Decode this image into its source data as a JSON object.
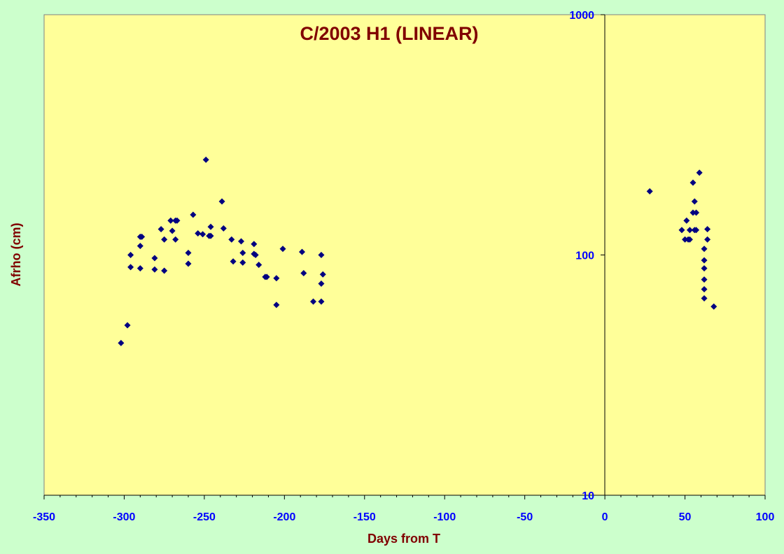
{
  "chart_data": {
    "type": "scatter",
    "title": "C/2003 H1 (LINEAR)",
    "xlabel": "Days from T",
    "ylabel": "Afrho (cm)",
    "xlim": [
      -350,
      100
    ],
    "ylim": [
      10,
      1000
    ],
    "y_scale": "log",
    "x_ticks": [
      -350,
      -300,
      -250,
      -200,
      -150,
      -100,
      -50,
      0,
      50,
      100
    ],
    "y_ticks": [
      10,
      100,
      1000
    ],
    "grid": false,
    "legend": "none",
    "colors": {
      "plot_background": "#ffff99",
      "page_background": "#ccffcc",
      "marker": "#000080",
      "title": "#800000",
      "tick_labels": "#0000ff"
    },
    "series": [
      {
        "marker": "diamond",
        "points": [
          [
            -302,
            43
          ],
          [
            -298,
            51
          ],
          [
            -296,
            100
          ],
          [
            -296,
            89
          ],
          [
            -290,
            119
          ],
          [
            -290,
            109
          ],
          [
            -290,
            88
          ],
          [
            -289,
            119
          ],
          [
            -281,
            97
          ],
          [
            -281,
            87
          ],
          [
            -277,
            128
          ],
          [
            -275,
            116
          ],
          [
            -275,
            86
          ],
          [
            -271,
            139
          ],
          [
            -270,
            126
          ],
          [
            -268,
            139
          ],
          [
            -268,
            116
          ],
          [
            -267,
            139
          ],
          [
            -260,
            102
          ],
          [
            -260,
            92
          ],
          [
            -257,
            147
          ],
          [
            -254,
            123
          ],
          [
            -251,
            122
          ],
          [
            -249,
            249
          ],
          [
            -247,
            120
          ],
          [
            -246,
            131
          ],
          [
            -246,
            120
          ],
          [
            -239,
            167
          ],
          [
            -238,
            129
          ],
          [
            -233,
            116
          ],
          [
            -232,
            94
          ],
          [
            -227,
            114
          ],
          [
            -226,
            102
          ],
          [
            -226,
            93
          ],
          [
            -219,
            111
          ],
          [
            -219,
            101
          ],
          [
            -218,
            100
          ],
          [
            -216,
            91
          ],
          [
            -212,
            81
          ],
          [
            -211,
            81
          ],
          [
            -205,
            80
          ],
          [
            -205,
            62
          ],
          [
            -201,
            106
          ],
          [
            -189,
            103
          ],
          [
            -188,
            84
          ],
          [
            -182,
            64
          ],
          [
            -177,
            100
          ],
          [
            -177,
            64
          ],
          [
            -177,
            76
          ],
          [
            -176,
            83
          ],
          [
            28,
            184
          ],
          [
            48,
            127
          ],
          [
            50,
            116
          ],
          [
            51,
            139
          ],
          [
            52,
            116
          ],
          [
            53,
            127
          ],
          [
            53,
            116
          ],
          [
            55,
            200
          ],
          [
            55,
            150
          ],
          [
            56,
            167
          ],
          [
            56,
            127
          ],
          [
            57,
            150
          ],
          [
            57,
            127
          ],
          [
            59,
            220
          ],
          [
            62,
            106
          ],
          [
            62,
            95
          ],
          [
            62,
            88
          ],
          [
            62,
            79
          ],
          [
            62,
            72
          ],
          [
            62,
            66
          ],
          [
            64,
            128
          ],
          [
            64,
            116
          ],
          [
            68,
            61
          ]
        ]
      }
    ]
  }
}
